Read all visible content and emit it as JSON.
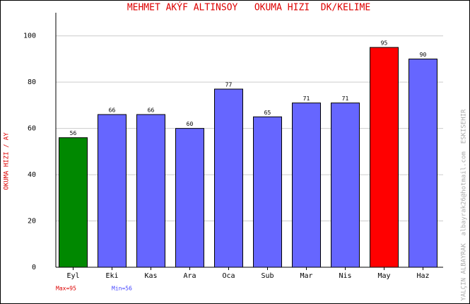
{
  "chart_data": {
    "type": "bar",
    "title": "MEHMET AKÝF ALTINSOY   OKUMA HIZI  DK/KELIME",
    "y_label": "OKUMA HIZI / AY",
    "credit": "YALÇIN ALBAYRAK  albayrak26@hotmail.com  ESKISEHIR",
    "max_label": "Max=95",
    "min_label": "Min=56",
    "categories": [
      "Eyl",
      "Eki",
      "Kas",
      "Ara",
      "Oca",
      "Sub",
      "Mar",
      "Nis",
      "May",
      "Haz"
    ],
    "values": [
      56,
      66,
      66,
      60,
      77,
      65,
      71,
      71,
      95,
      90
    ],
    "colors": [
      "#008800",
      "#6666ff",
      "#6666ff",
      "#6666ff",
      "#6666ff",
      "#6666ff",
      "#6666ff",
      "#6666ff",
      "#ff0000",
      "#6666ff"
    ],
    "ylim": [
      0,
      110
    ],
    "yticks": [
      0,
      20,
      40,
      60,
      80,
      100
    ],
    "grid": true
  }
}
